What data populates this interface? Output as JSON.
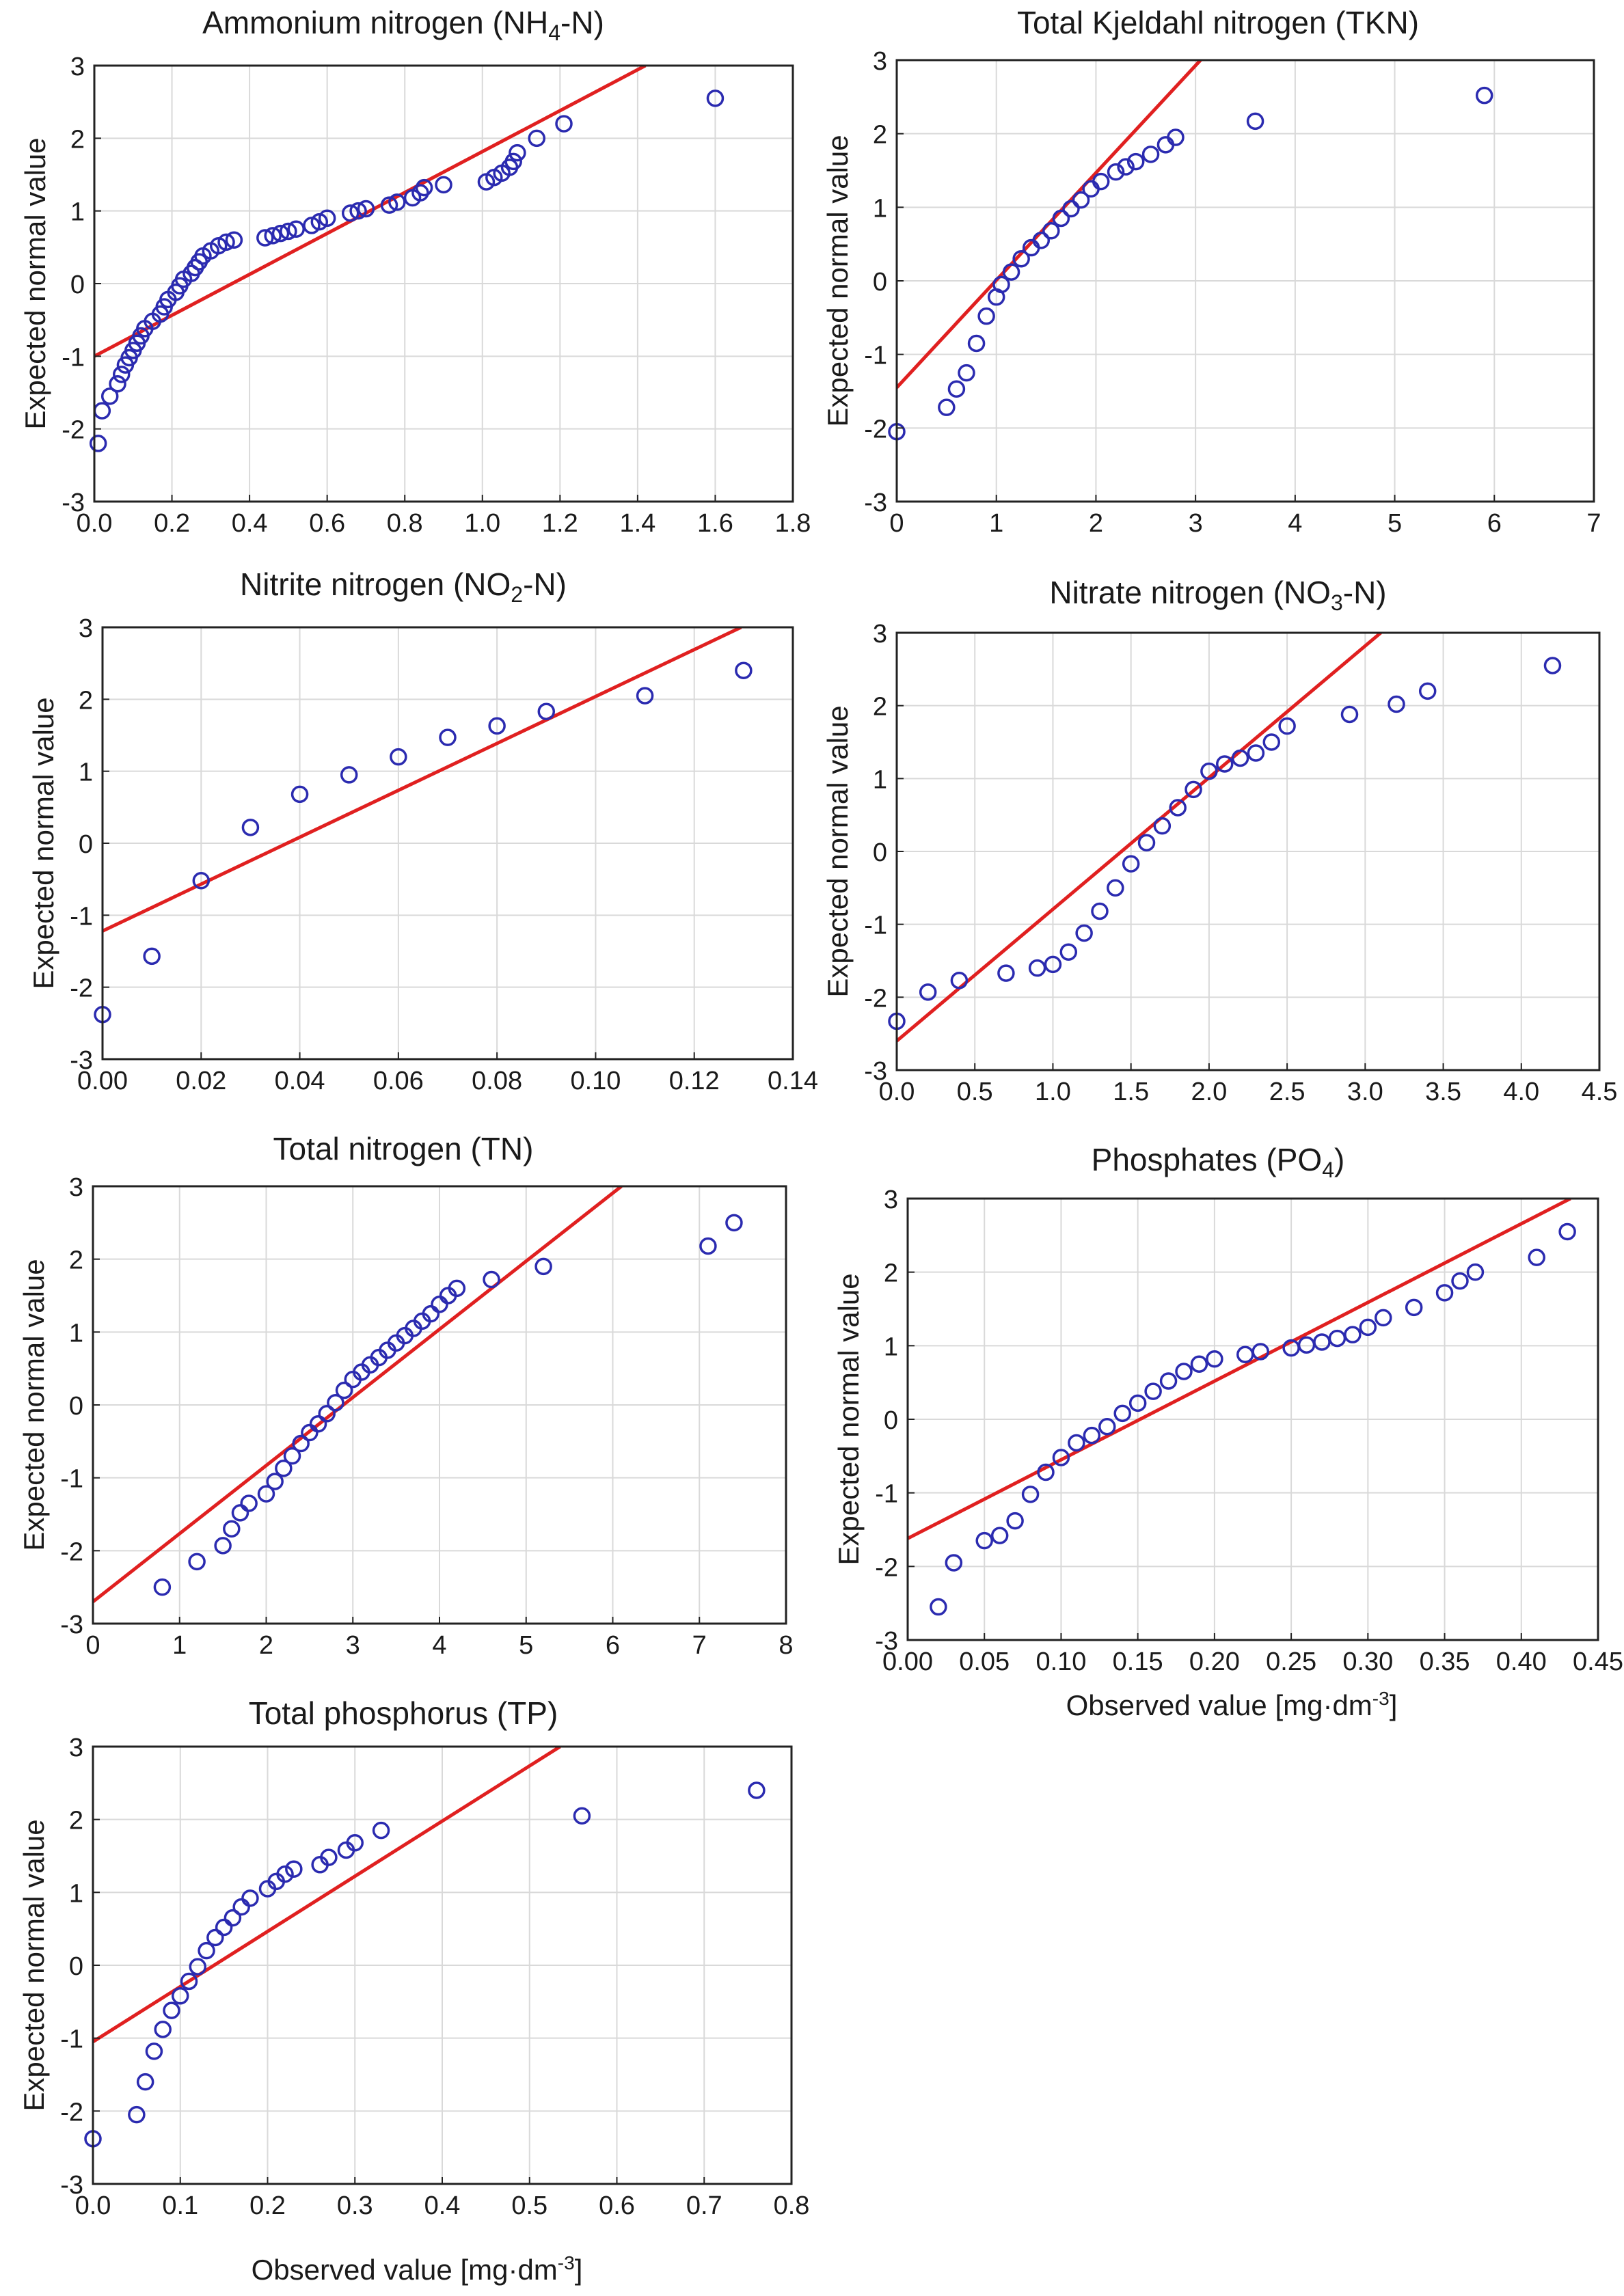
{
  "colors": {
    "points": "#2b2bb0",
    "fit_line": "#e02020",
    "grid": "#d9d9d9",
    "frame": "#222222"
  },
  "chart_data": [
    {
      "id": "nh4",
      "type": "scatter",
      "title": {
        "main": "Ammonium nitrogen (NH",
        "sub": "4",
        "tail": "-N)"
      },
      "xlabel": "",
      "ylabel": "Expected normal value",
      "xlim": [
        0,
        1.8
      ],
      "ylim": [
        -3,
        3
      ],
      "xticks": [
        "0.0",
        "0.2",
        "0.4",
        "0.6",
        "0.8",
        "1.0",
        "1.2",
        "1.4",
        "1.6",
        "1.8"
      ],
      "yticks": [
        "-3",
        "-2",
        "-1",
        "0",
        "1",
        "2",
        "3"
      ],
      "fit_line": [
        [
          0,
          -1.0
        ],
        [
          1.42,
          3.0
        ]
      ],
      "points": [
        [
          0.01,
          -2.2
        ],
        [
          0.02,
          -1.75
        ],
        [
          0.04,
          -1.55
        ],
        [
          0.06,
          -1.38
        ],
        [
          0.07,
          -1.25
        ],
        [
          0.08,
          -1.12
        ],
        [
          0.09,
          -1.02
        ],
        [
          0.1,
          -0.92
        ],
        [
          0.11,
          -0.82
        ],
        [
          0.12,
          -0.72
        ],
        [
          0.13,
          -0.62
        ],
        [
          0.15,
          -0.52
        ],
        [
          0.17,
          -0.42
        ],
        [
          0.18,
          -0.32
        ],
        [
          0.19,
          -0.22
        ],
        [
          0.21,
          -0.12
        ],
        [
          0.22,
          -0.03
        ],
        [
          0.23,
          0.06
        ],
        [
          0.25,
          0.14
        ],
        [
          0.26,
          0.22
        ],
        [
          0.27,
          0.3
        ],
        [
          0.28,
          0.38
        ],
        [
          0.3,
          0.45
        ],
        [
          0.32,
          0.52
        ],
        [
          0.34,
          0.57
        ],
        [
          0.36,
          0.6
        ],
        [
          0.44,
          0.63
        ],
        [
          0.46,
          0.66
        ],
        [
          0.48,
          0.69
        ],
        [
          0.5,
          0.72
        ],
        [
          0.52,
          0.75
        ],
        [
          0.56,
          0.8
        ],
        [
          0.58,
          0.85
        ],
        [
          0.6,
          0.9
        ],
        [
          0.66,
          0.97
        ],
        [
          0.68,
          1.0
        ],
        [
          0.7,
          1.03
        ],
        [
          0.76,
          1.08
        ],
        [
          0.78,
          1.12
        ],
        [
          0.82,
          1.18
        ],
        [
          0.84,
          1.25
        ],
        [
          0.85,
          1.32
        ],
        [
          0.9,
          1.36
        ],
        [
          1.01,
          1.4
        ],
        [
          1.03,
          1.46
        ],
        [
          1.05,
          1.52
        ],
        [
          1.07,
          1.6
        ],
        [
          1.08,
          1.68
        ],
        [
          1.09,
          1.8
        ],
        [
          1.14,
          2.0
        ],
        [
          1.21,
          2.2
        ],
        [
          1.6,
          2.55
        ]
      ]
    },
    {
      "id": "tkn",
      "type": "scatter",
      "title": {
        "main": "Total Kjeldahl nitrogen (TKN)",
        "sub": "",
        "tail": ""
      },
      "xlabel": "",
      "ylabel": "Expected normal value",
      "xlim": [
        0,
        7
      ],
      "ylim": [
        -3,
        3
      ],
      "xticks": [
        "0",
        "1",
        "2",
        "3",
        "4",
        "5",
        "6",
        "7"
      ],
      "yticks": [
        "-3",
        "-2",
        "-1",
        "0",
        "1",
        "2",
        "3"
      ],
      "fit_line": [
        [
          0,
          -1.45
        ],
        [
          3.05,
          3.0
        ]
      ],
      "points": [
        [
          0.0,
          -2.05
        ],
        [
          0.5,
          -1.72
        ],
        [
          0.6,
          -1.47
        ],
        [
          0.7,
          -1.25
        ],
        [
          0.8,
          -0.85
        ],
        [
          0.9,
          -0.48
        ],
        [
          1.0,
          -0.22
        ],
        [
          1.05,
          -0.05
        ],
        [
          1.15,
          0.12
        ],
        [
          1.25,
          0.3
        ],
        [
          1.35,
          0.45
        ],
        [
          1.45,
          0.55
        ],
        [
          1.55,
          0.68
        ],
        [
          1.65,
          0.85
        ],
        [
          1.75,
          0.98
        ],
        [
          1.85,
          1.1
        ],
        [
          1.95,
          1.25
        ],
        [
          2.05,
          1.35
        ],
        [
          2.2,
          1.48
        ],
        [
          2.3,
          1.55
        ],
        [
          2.4,
          1.62
        ],
        [
          2.55,
          1.72
        ],
        [
          2.7,
          1.85
        ],
        [
          2.8,
          1.95
        ],
        [
          3.6,
          2.17
        ],
        [
          5.9,
          2.52
        ]
      ]
    },
    {
      "id": "no2",
      "type": "scatter",
      "title": {
        "main": "Nitrite nitrogen  (NO",
        "sub": "2",
        "tail": "-N)"
      },
      "xlabel": "",
      "ylabel": "Expected normal value",
      "xlim": [
        0,
        0.14
      ],
      "ylim": [
        -3,
        3
      ],
      "xticks": [
        "0.00",
        "0.02",
        "0.04",
        "0.06",
        "0.08",
        "0.10",
        "0.12",
        "0.14"
      ],
      "yticks": [
        "-3",
        "-2",
        "-1",
        "0",
        "1",
        "2",
        "3"
      ],
      "fit_line": [
        [
          0,
          -1.22
        ],
        [
          0.1295,
          3.0
        ]
      ],
      "points": [
        [
          0.0,
          -2.38
        ],
        [
          0.01,
          -1.57
        ],
        [
          0.02,
          -0.52
        ],
        [
          0.03,
          0.22
        ],
        [
          0.04,
          0.68
        ],
        [
          0.05,
          0.95
        ],
        [
          0.06,
          1.2
        ],
        [
          0.07,
          1.47
        ],
        [
          0.08,
          1.63
        ],
        [
          0.09,
          1.83
        ],
        [
          0.11,
          2.05
        ],
        [
          0.13,
          2.4
        ]
      ]
    },
    {
      "id": "no3",
      "type": "scatter",
      "title": {
        "main": "Nitrate nitrogen  (NO",
        "sub": "3",
        "tail": "-N)"
      },
      "xlabel": "",
      "ylabel": "Expected normal value",
      "xlim": [
        0,
        4.5
      ],
      "ylim": [
        -3,
        3
      ],
      "xticks": [
        "0.0",
        "0.5",
        "1.0",
        "1.5",
        "2.0",
        "2.5",
        "3.0",
        "3.5",
        "4.0",
        "4.5"
      ],
      "yticks": [
        "-3",
        "-2",
        "-1",
        "0",
        "1",
        "2",
        "3"
      ],
      "fit_line": [
        [
          0,
          -2.6
        ],
        [
          3.1,
          3.0
        ]
      ],
      "points": [
        [
          0.0,
          -2.33
        ],
        [
          0.2,
          -1.93
        ],
        [
          0.4,
          -1.77
        ],
        [
          0.7,
          -1.67
        ],
        [
          0.9,
          -1.6
        ],
        [
          1.0,
          -1.55
        ],
        [
          1.1,
          -1.38
        ],
        [
          1.2,
          -1.12
        ],
        [
          1.3,
          -0.82
        ],
        [
          1.4,
          -0.5
        ],
        [
          1.5,
          -0.17
        ],
        [
          1.6,
          0.12
        ],
        [
          1.7,
          0.35
        ],
        [
          1.8,
          0.6
        ],
        [
          1.9,
          0.85
        ],
        [
          2.0,
          1.1
        ],
        [
          2.1,
          1.2
        ],
        [
          2.2,
          1.28
        ],
        [
          2.3,
          1.35
        ],
        [
          2.4,
          1.5
        ],
        [
          2.5,
          1.72
        ],
        [
          2.9,
          1.88
        ],
        [
          3.2,
          2.02
        ],
        [
          3.4,
          2.2
        ],
        [
          4.2,
          2.55
        ]
      ]
    },
    {
      "id": "tn",
      "type": "scatter",
      "title": {
        "main": "Total nitrogen (TN)",
        "sub": "",
        "tail": ""
      },
      "xlabel": "",
      "ylabel": "Expected normal value",
      "xlim": [
        0,
        8
      ],
      "ylim": [
        -3,
        3
      ],
      "xticks": [
        "0",
        "1",
        "2",
        "3",
        "4",
        "5",
        "6",
        "7",
        "8"
      ],
      "yticks": [
        "-3",
        "-2",
        "-1",
        "0",
        "1",
        "2",
        "3"
      ],
      "fit_line": [
        [
          0,
          -2.7
        ],
        [
          6.1,
          3.0
        ]
      ],
      "points": [
        [
          0.8,
          -2.5
        ],
        [
          1.2,
          -2.15
        ],
        [
          1.5,
          -1.93
        ],
        [
          1.6,
          -1.7
        ],
        [
          1.7,
          -1.48
        ],
        [
          1.8,
          -1.35
        ],
        [
          2.0,
          -1.22
        ],
        [
          2.1,
          -1.05
        ],
        [
          2.2,
          -0.87
        ],
        [
          2.3,
          -0.7
        ],
        [
          2.4,
          -0.53
        ],
        [
          2.5,
          -0.38
        ],
        [
          2.6,
          -0.26
        ],
        [
          2.7,
          -0.12
        ],
        [
          2.8,
          0.03
        ],
        [
          2.9,
          0.2
        ],
        [
          3.0,
          0.35
        ],
        [
          3.1,
          0.45
        ],
        [
          3.2,
          0.55
        ],
        [
          3.3,
          0.65
        ],
        [
          3.4,
          0.75
        ],
        [
          3.5,
          0.85
        ],
        [
          3.6,
          0.95
        ],
        [
          3.7,
          1.05
        ],
        [
          3.8,
          1.15
        ],
        [
          3.9,
          1.25
        ],
        [
          4.0,
          1.38
        ],
        [
          4.1,
          1.5
        ],
        [
          4.2,
          1.6
        ],
        [
          4.6,
          1.72
        ],
        [
          5.2,
          1.9
        ],
        [
          7.1,
          2.18
        ],
        [
          7.4,
          2.5
        ]
      ]
    },
    {
      "id": "po4",
      "type": "scatter",
      "title": {
        "main": "Phosphates (PO",
        "sub": "4",
        "tail": ")"
      },
      "xlabel": {
        "main": "Observed value [mg·dm",
        "sup": "-3",
        "tail": "]"
      },
      "ylabel": "Expected normal value",
      "xlim": [
        0,
        0.45
      ],
      "ylim": [
        -3,
        3
      ],
      "xticks": [
        "0.00",
        "0.05",
        "0.10",
        "0.15",
        "0.20",
        "0.25",
        "0.30",
        "0.35",
        "0.40",
        "0.45"
      ],
      "yticks": [
        "-3",
        "-2",
        "-1",
        "0",
        "1",
        "2",
        "3"
      ],
      "fit_line": [
        [
          0,
          -1.62
        ],
        [
          0.432,
          3.0
        ]
      ],
      "points": [
        [
          0.02,
          -2.55
        ],
        [
          0.03,
          -1.95
        ],
        [
          0.05,
          -1.65
        ],
        [
          0.06,
          -1.58
        ],
        [
          0.07,
          -1.38
        ],
        [
          0.08,
          -1.02
        ],
        [
          0.09,
          -0.72
        ],
        [
          0.1,
          -0.52
        ],
        [
          0.11,
          -0.32
        ],
        [
          0.12,
          -0.22
        ],
        [
          0.13,
          -0.1
        ],
        [
          0.14,
          0.08
        ],
        [
          0.15,
          0.22
        ],
        [
          0.16,
          0.38
        ],
        [
          0.17,
          0.52
        ],
        [
          0.18,
          0.65
        ],
        [
          0.19,
          0.75
        ],
        [
          0.2,
          0.82
        ],
        [
          0.22,
          0.88
        ],
        [
          0.23,
          0.92
        ],
        [
          0.25,
          0.97
        ],
        [
          0.26,
          1.01
        ],
        [
          0.27,
          1.05
        ],
        [
          0.28,
          1.1
        ],
        [
          0.29,
          1.15
        ],
        [
          0.3,
          1.25
        ],
        [
          0.31,
          1.38
        ],
        [
          0.33,
          1.52
        ],
        [
          0.35,
          1.72
        ],
        [
          0.36,
          1.88
        ],
        [
          0.37,
          2.0
        ],
        [
          0.41,
          2.2
        ],
        [
          0.43,
          2.55
        ]
      ]
    },
    {
      "id": "tp",
      "type": "scatter",
      "title": {
        "main": "Total phosphorus (TP)",
        "sub": "",
        "tail": ""
      },
      "xlabel": {
        "main": "Observed value [mg·dm",
        "sup": "-3",
        "tail": "]"
      },
      "ylabel": "Expected normal value",
      "xlim": [
        0,
        0.8
      ],
      "ylim": [
        -3,
        3
      ],
      "xticks": [
        "0.0",
        "0.1",
        "0.2",
        "0.3",
        "0.4",
        "0.5",
        "0.6",
        "0.7",
        "0.8"
      ],
      "yticks": [
        "-3",
        "-2",
        "-1",
        "0",
        "1",
        "2",
        "3"
      ],
      "fit_line": [
        [
          0,
          -1.05
        ],
        [
          0.535,
          3.0
        ]
      ],
      "points": [
        [
          0.0,
          -2.38
        ],
        [
          0.05,
          -2.05
        ],
        [
          0.06,
          -1.6
        ],
        [
          0.07,
          -1.18
        ],
        [
          0.08,
          -0.88
        ],
        [
          0.09,
          -0.62
        ],
        [
          0.1,
          -0.42
        ],
        [
          0.11,
          -0.22
        ],
        [
          0.12,
          -0.02
        ],
        [
          0.13,
          0.2
        ],
        [
          0.14,
          0.38
        ],
        [
          0.15,
          0.52
        ],
        [
          0.16,
          0.65
        ],
        [
          0.17,
          0.8
        ],
        [
          0.18,
          0.92
        ],
        [
          0.2,
          1.05
        ],
        [
          0.21,
          1.15
        ],
        [
          0.22,
          1.25
        ],
        [
          0.23,
          1.32
        ],
        [
          0.26,
          1.38
        ],
        [
          0.27,
          1.48
        ],
        [
          0.29,
          1.58
        ],
        [
          0.3,
          1.68
        ],
        [
          0.33,
          1.85
        ],
        [
          0.56,
          2.05
        ],
        [
          0.76,
          2.4
        ]
      ]
    }
  ]
}
